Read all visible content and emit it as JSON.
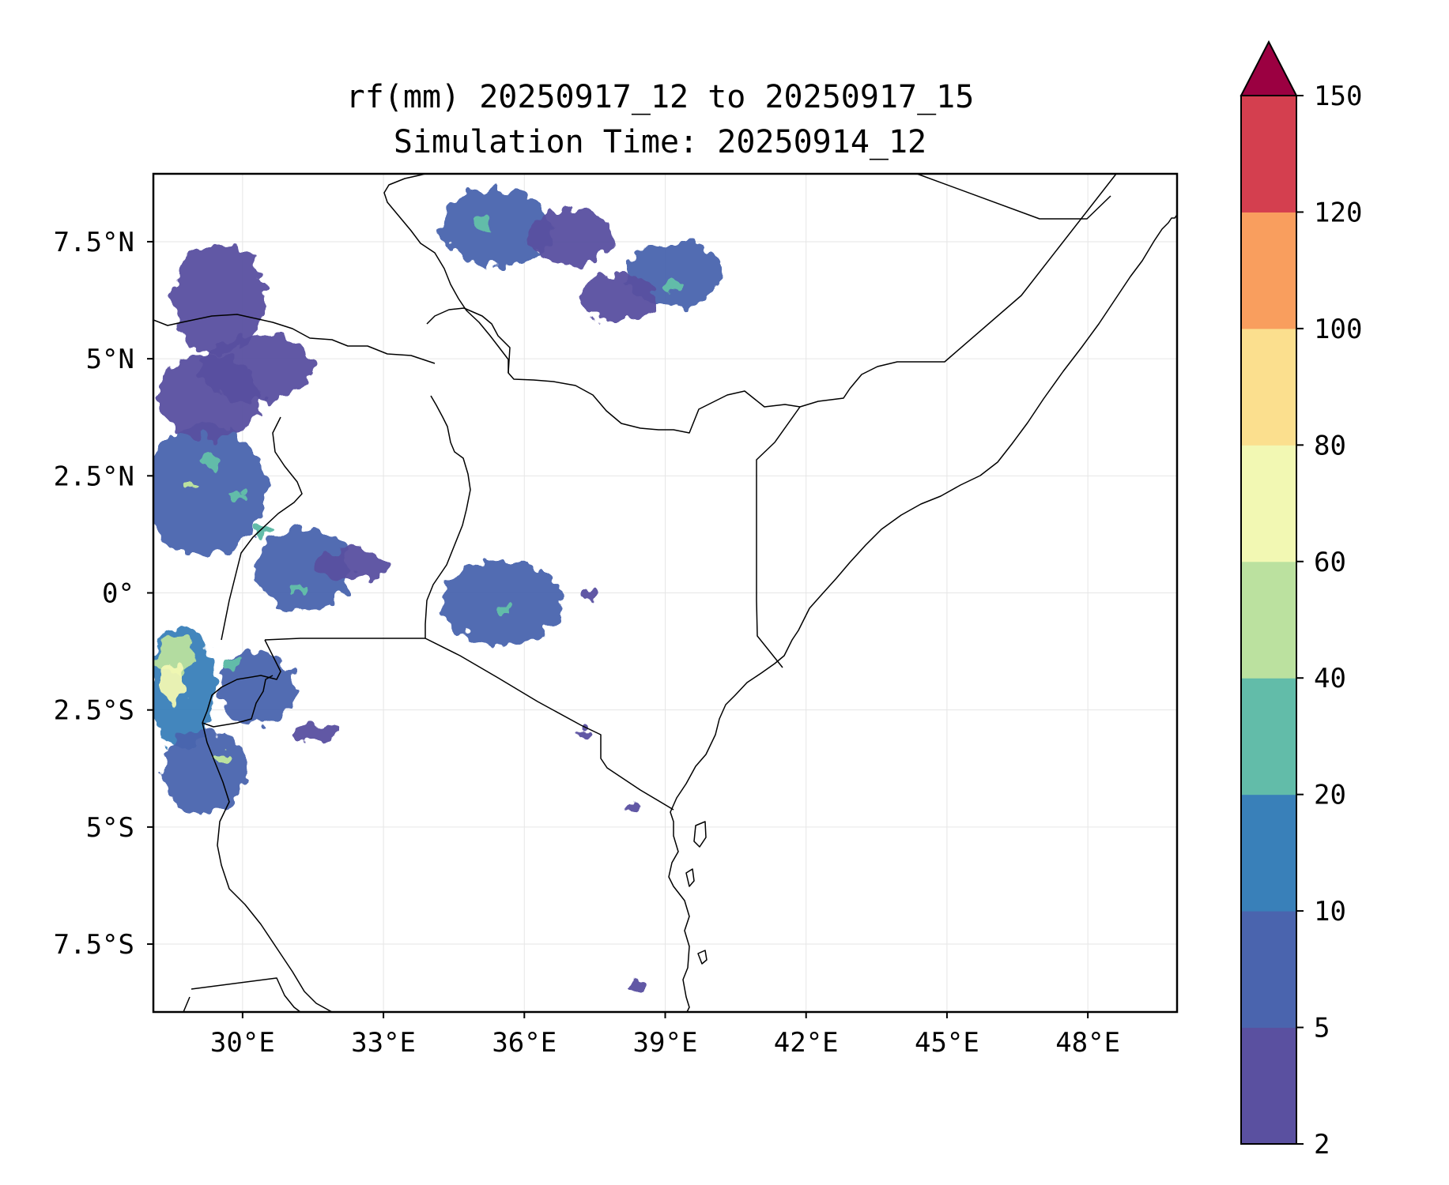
{
  "title": {
    "line1": "rf(mm) 20250917_12 to 20250917_15",
    "line2": "Simulation Time: 20250914_12"
  },
  "map": {
    "lon_range": [
      28.1,
      49.9
    ],
    "lat_range": [
      -8.95,
      8.95
    ],
    "x_ticks": [
      {
        "value": 30,
        "label": "30°E"
      },
      {
        "value": 33,
        "label": "33°E"
      },
      {
        "value": 36,
        "label": "36°E"
      },
      {
        "value": 39,
        "label": "39°E"
      },
      {
        "value": 42,
        "label": "42°E"
      },
      {
        "value": 45,
        "label": "45°E"
      },
      {
        "value": 48,
        "label": "48°E"
      }
    ],
    "y_ticks": [
      {
        "value": 7.5,
        "label": "7.5°N"
      },
      {
        "value": 5,
        "label": "5°N"
      },
      {
        "value": 2.5,
        "label": "2.5°N"
      },
      {
        "value": 0,
        "label": "0°"
      },
      {
        "value": -2.5,
        "label": "2.5°S"
      },
      {
        "value": -5,
        "label": "5°S"
      },
      {
        "value": -7.5,
        "label": "7.5°S"
      }
    ],
    "gridlines": true,
    "coastline_color": "#000000",
    "rain_regions": [
      {
        "lon": 29.2,
        "lat": 2.2,
        "rlon": 1.3,
        "rlat": 1.4,
        "level": 5
      },
      {
        "lon": 29.3,
        "lat": 4.2,
        "rlon": 1.1,
        "rlat": 0.9,
        "level": 2
      },
      {
        "lon": 29.5,
        "lat": 6.3,
        "rlon": 1.0,
        "rlat": 1.2,
        "level": 2
      },
      {
        "lon": 30.3,
        "lat": 4.8,
        "rlon": 1.2,
        "rlat": 0.7,
        "level": 2
      },
      {
        "lon": 31.3,
        "lat": 0.5,
        "rlon": 1.0,
        "rlat": 0.9,
        "level": 5
      },
      {
        "lon": 32.3,
        "lat": 0.6,
        "rlon": 0.8,
        "rlat": 0.3,
        "level": 2
      },
      {
        "lon": 28.7,
        "lat": -2.0,
        "rlon": 0.7,
        "rlat": 1.3,
        "level": 10
      },
      {
        "lon": 28.6,
        "lat": -1.3,
        "rlon": 0.4,
        "rlat": 0.4,
        "level": 40
      },
      {
        "lon": 28.5,
        "lat": -2.0,
        "rlon": 0.25,
        "rlat": 0.45,
        "level": 60
      },
      {
        "lon": 29.2,
        "lat": -3.8,
        "rlon": 0.9,
        "rlat": 0.9,
        "level": 5
      },
      {
        "lon": 30.3,
        "lat": -2.0,
        "rlon": 0.8,
        "rlat": 0.8,
        "level": 5
      },
      {
        "lon": 31.6,
        "lat": -3.0,
        "rlon": 0.5,
        "rlat": 0.18,
        "level": 2
      },
      {
        "lon": 35.5,
        "lat": -0.2,
        "rlon": 1.3,
        "rlat": 0.9,
        "level": 5
      },
      {
        "lon": 35.4,
        "lat": 7.8,
        "rlon": 1.2,
        "rlat": 0.8,
        "level": 5
      },
      {
        "lon": 39.2,
        "lat": 6.8,
        "rlon": 1.0,
        "rlat": 0.7,
        "level": 5
      },
      {
        "lon": 37.0,
        "lat": 7.6,
        "rlon": 0.9,
        "rlat": 0.6,
        "level": 2
      },
      {
        "lon": 38.0,
        "lat": 6.3,
        "rlon": 0.8,
        "rlat": 0.5,
        "level": 2
      },
      {
        "lon": 37.3,
        "lat": -3.0,
        "rlon": 0.15,
        "rlat": 0.1,
        "level": 2
      },
      {
        "lon": 38.3,
        "lat": -4.6,
        "rlon": 0.15,
        "rlat": 0.1,
        "level": 2
      },
      {
        "lon": 37.4,
        "lat": -0.05,
        "rlon": 0.14,
        "rlat": 0.15,
        "level": 2
      },
      {
        "lon": 38.4,
        "lat": -8.4,
        "rlon": 0.2,
        "rlat": 0.12,
        "level": 2
      }
    ],
    "hotspots": [
      {
        "lon": 29.9,
        "lat": 2.1,
        "level": 20
      },
      {
        "lon": 29.3,
        "lat": 2.8,
        "level": 20
      },
      {
        "lon": 30.4,
        "lat": 1.3,
        "level": 20
      },
      {
        "lon": 29.8,
        "lat": -1.5,
        "level": 20
      },
      {
        "lon": 31.2,
        "lat": 0.1,
        "level": 20
      },
      {
        "lon": 35.1,
        "lat": 7.9,
        "level": 20
      },
      {
        "lon": 39.2,
        "lat": 6.6,
        "level": 20
      },
      {
        "lon": 29.6,
        "lat": -3.5,
        "level": 40
      },
      {
        "lon": 28.9,
        "lat": 2.3,
        "level": 40
      },
      {
        "lon": 35.6,
        "lat": -0.4,
        "level": 20
      }
    ]
  },
  "colorbar": {
    "levels": [
      2,
      5,
      10,
      20,
      40,
      60,
      80,
      100,
      120,
      150
    ],
    "colors": [
      "#5a50a0",
      "#4a64ae",
      "#3980b9",
      "#62bca9",
      "#bbe19f",
      "#f2f8b3",
      "#fbdf8e",
      "#f99e5e",
      "#d43f4f"
    ],
    "extend_color": "#9b0041",
    "extend": "max"
  }
}
